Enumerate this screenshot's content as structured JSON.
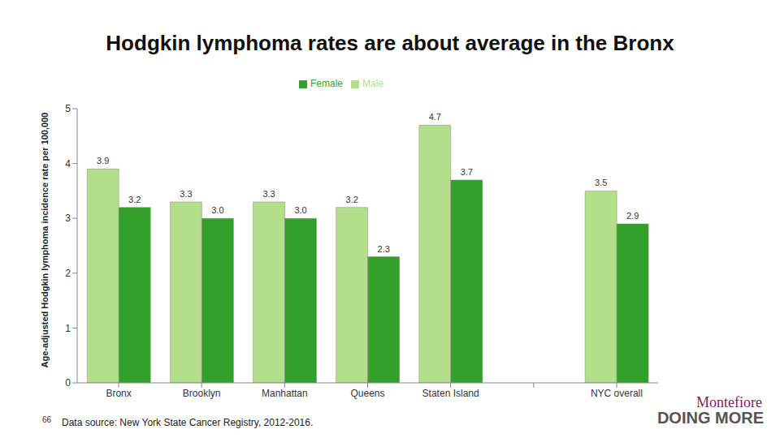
{
  "chart_data": {
    "type": "bar",
    "title": "Hodgkin lymphoma rates are about average in the Bronx",
    "y_label": "Age-adjusted Hodgkin lymphoma incidence rate per 100,000",
    "categories": [
      "Bronx",
      "Brooklyn",
      "Manhattan",
      "Queens",
      "Staten Island",
      null,
      "NYC overall"
    ],
    "series": [
      {
        "name": "Male",
        "color": "#b3df8a",
        "values": [
          3.9,
          3.3,
          3.3,
          3.2,
          4.7,
          null,
          3.5
        ],
        "value_labels": [
          "3.9",
          "3.3",
          "3.3",
          "3.2",
          "4.7",
          null,
          "3.5"
        ]
      },
      {
        "name": "Female",
        "color": "#33a02c",
        "values": [
          3.2,
          3.0,
          3.0,
          2.3,
          3.7,
          null,
          2.9
        ],
        "value_labels": [
          "3.2",
          "3.0",
          "3.0",
          "2.3",
          "3.7",
          null,
          "2.9"
        ]
      }
    ],
    "ylim": [
      0,
      5
    ],
    "yticks": [
      0,
      1,
      2,
      3,
      4,
      5
    ],
    "grid": false,
    "legend": "top",
    "data_labels": true,
    "annotations": [
      "66",
      "Data source: New York State Cancer Registry, 2012-2016.",
      "Montefiore",
      "DOING MORE"
    ]
  }
}
